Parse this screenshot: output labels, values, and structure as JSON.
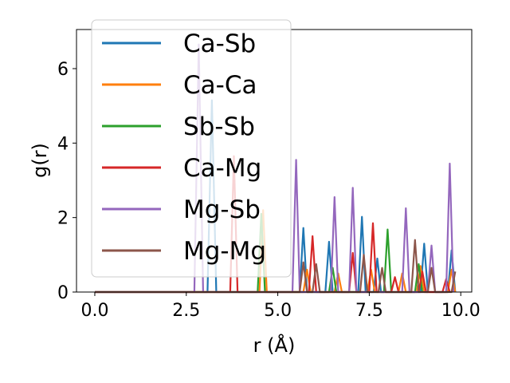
{
  "chart_data": {
    "type": "line",
    "title": "",
    "xlabel": "r (Å)",
    "ylabel": "g(r)",
    "xlim": [
      -0.5,
      10.3
    ],
    "ylim": [
      0,
      7.05
    ],
    "xticks": [
      0.0,
      2.5,
      5.0,
      7.5,
      10.0
    ],
    "xtick_labels": [
      "0.0",
      "2.5",
      "5.0",
      "7.5",
      "10.0"
    ],
    "yticks": [
      0,
      2,
      4,
      6
    ],
    "ytick_labels": [
      "0",
      "2",
      "4",
      "6"
    ],
    "grid": false,
    "legend_position": "upper-left",
    "series": [
      {
        "name": "Ca-Sb",
        "color": "#1f77b4",
        "points": [
          [
            0,
            0
          ],
          [
            3.08,
            0
          ],
          [
            3.2,
            5.15
          ],
          [
            3.32,
            0
          ],
          [
            5.6,
            0
          ],
          [
            5.7,
            1.72
          ],
          [
            5.8,
            0
          ],
          [
            6.3,
            0
          ],
          [
            6.4,
            1.35
          ],
          [
            6.5,
            0
          ],
          [
            7.2,
            0
          ],
          [
            7.3,
            2.02
          ],
          [
            7.4,
            0
          ],
          [
            7.62,
            0
          ],
          [
            7.72,
            0.9
          ],
          [
            7.82,
            0
          ],
          [
            8.9,
            0
          ],
          [
            9.0,
            1.3
          ],
          [
            9.1,
            0
          ],
          [
            9.65,
            0
          ],
          [
            9.75,
            1.12
          ],
          [
            9.85,
            0
          ]
        ]
      },
      {
        "name": "Ca-Ca",
        "color": "#ff7f0e",
        "points": [
          [
            0,
            0
          ],
          [
            4.5,
            0
          ],
          [
            4.6,
            2.2
          ],
          [
            4.7,
            0
          ],
          [
            5.7,
            0
          ],
          [
            5.8,
            0.6
          ],
          [
            5.9,
            0
          ],
          [
            6.55,
            0
          ],
          [
            6.65,
            0.5
          ],
          [
            6.75,
            0
          ],
          [
            7.45,
            0
          ],
          [
            7.55,
            0.6
          ],
          [
            7.65,
            0
          ],
          [
            8.3,
            0
          ],
          [
            8.4,
            0.5
          ],
          [
            8.5,
            0
          ],
          [
            8.8,
            0
          ],
          [
            8.9,
            0.7
          ],
          [
            9.0,
            0
          ],
          [
            9.65,
            0
          ],
          [
            9.75,
            0.6
          ],
          [
            9.85,
            0
          ]
        ]
      },
      {
        "name": "Sb-Sb",
        "color": "#2ca02c",
        "points": [
          [
            0,
            0
          ],
          [
            4.45,
            0
          ],
          [
            4.55,
            2.1
          ],
          [
            4.65,
            0
          ],
          [
            6.4,
            0
          ],
          [
            6.5,
            0.65
          ],
          [
            6.6,
            0
          ],
          [
            7.9,
            0
          ],
          [
            8.0,
            1.68
          ],
          [
            8.1,
            0
          ],
          [
            8.75,
            0
          ],
          [
            8.85,
            0.75
          ],
          [
            8.95,
            0
          ]
        ]
      },
      {
        "name": "Ca-Mg",
        "color": "#d62728",
        "points": [
          [
            0,
            0
          ],
          [
            3.7,
            0
          ],
          [
            3.8,
            3.65
          ],
          [
            3.9,
            0
          ],
          [
            5.85,
            0
          ],
          [
            5.95,
            1.5
          ],
          [
            6.05,
            0
          ],
          [
            6.95,
            0
          ],
          [
            7.05,
            1.05
          ],
          [
            7.15,
            0
          ],
          [
            7.5,
            0
          ],
          [
            7.6,
            1.85
          ],
          [
            7.7,
            0
          ],
          [
            8.1,
            0
          ],
          [
            8.2,
            0.4
          ],
          [
            8.3,
            0
          ],
          [
            8.85,
            0
          ],
          [
            8.95,
            0.55
          ],
          [
            9.05,
            0
          ],
          [
            9.5,
            0
          ],
          [
            9.6,
            0.35
          ],
          [
            9.7,
            0
          ]
        ]
      },
      {
        "name": "Mg-Sb",
        "color": "#9467bd",
        "points": [
          [
            0,
            0
          ],
          [
            2.72,
            0
          ],
          [
            2.84,
            6.65
          ],
          [
            2.96,
            0
          ],
          [
            5.4,
            0
          ],
          [
            5.5,
            3.55
          ],
          [
            5.6,
            0
          ],
          [
            6.45,
            0
          ],
          [
            6.55,
            2.55
          ],
          [
            6.65,
            0
          ],
          [
            6.95,
            0
          ],
          [
            7.05,
            2.8
          ],
          [
            7.15,
            0
          ],
          [
            8.4,
            0
          ],
          [
            8.5,
            2.25
          ],
          [
            8.6,
            0
          ],
          [
            9.1,
            0
          ],
          [
            9.2,
            1.25
          ],
          [
            9.3,
            0
          ],
          [
            9.6,
            0
          ],
          [
            9.7,
            3.45
          ],
          [
            9.8,
            0
          ]
        ]
      },
      {
        "name": "Mg-Mg",
        "color": "#8c564b",
        "points": [
          [
            0,
            0
          ],
          [
            5.6,
            0
          ],
          [
            5.7,
            0.8
          ],
          [
            5.8,
            0
          ],
          [
            5.95,
            0
          ],
          [
            6.05,
            0.75
          ],
          [
            6.15,
            0
          ],
          [
            7.25,
            0
          ],
          [
            7.35,
            1.0
          ],
          [
            7.45,
            0
          ],
          [
            7.75,
            0
          ],
          [
            7.85,
            0.65
          ],
          [
            7.95,
            0
          ],
          [
            8.65,
            0
          ],
          [
            8.75,
            1.4
          ],
          [
            8.85,
            0
          ],
          [
            9.1,
            0
          ],
          [
            9.2,
            0.65
          ],
          [
            9.3,
            0
          ],
          [
            9.75,
            0
          ],
          [
            9.85,
            0.55
          ]
        ]
      }
    ]
  }
}
